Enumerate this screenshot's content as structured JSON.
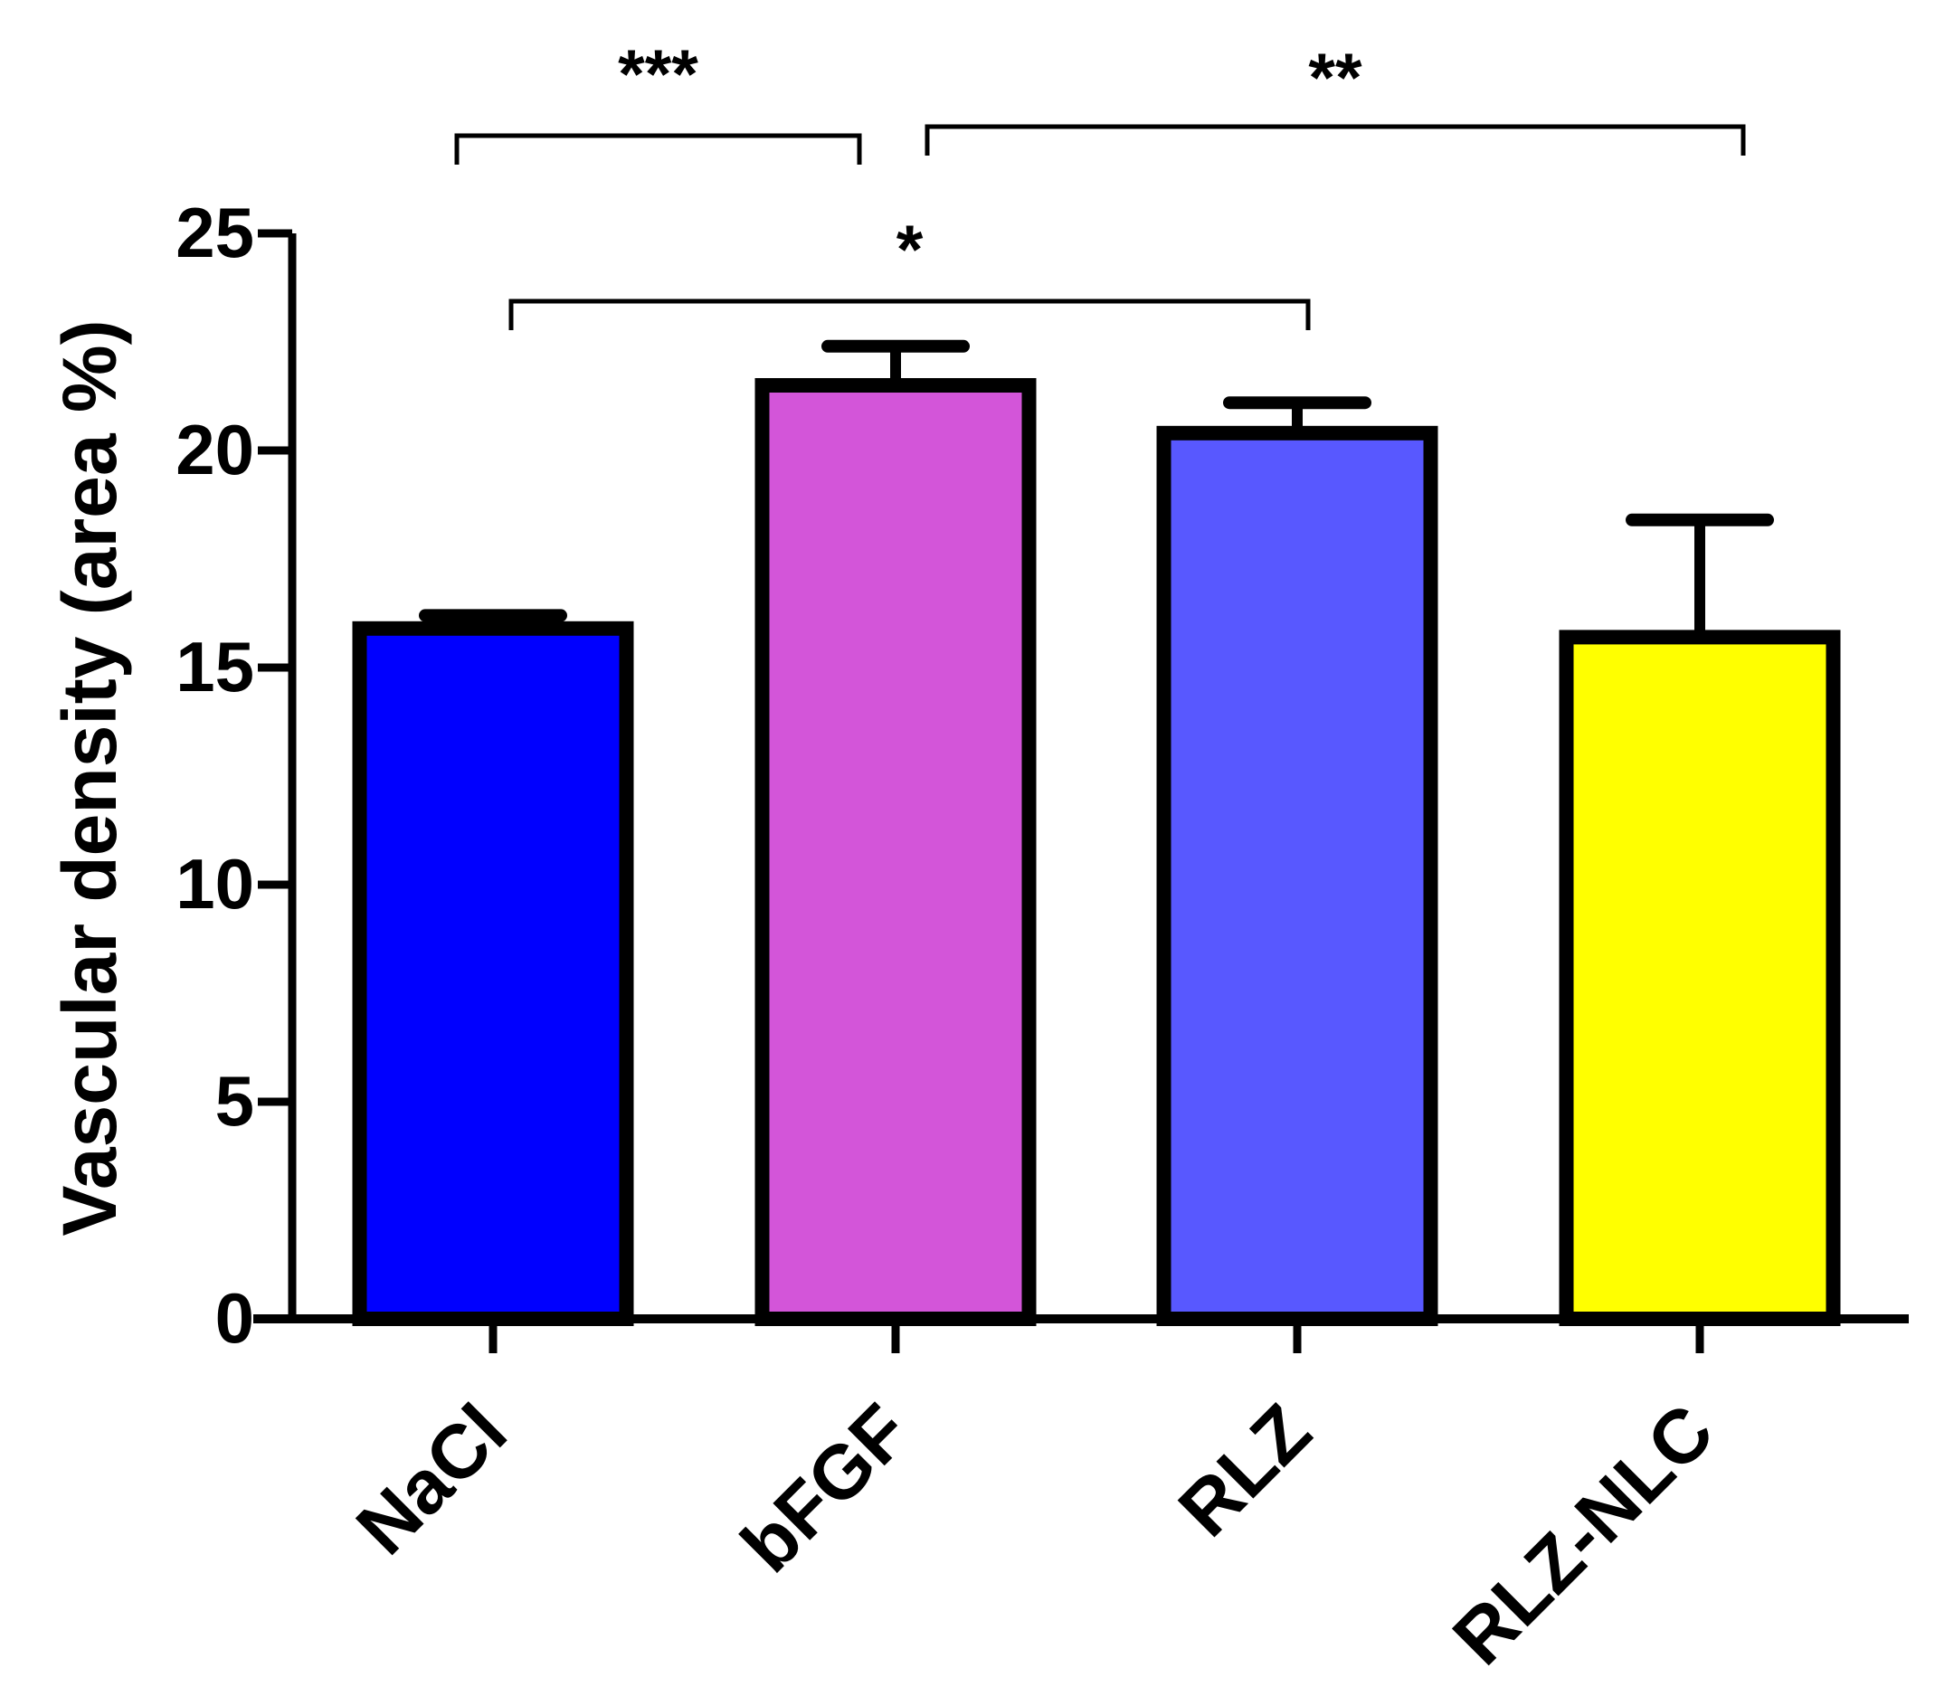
{
  "chart_data": {
    "type": "bar",
    "title": "",
    "xlabel": "",
    "ylabel": "Vascular density (area %)",
    "ylim": [
      0,
      25
    ],
    "yticks": [
      0,
      5,
      10,
      15,
      20,
      25
    ],
    "categories": [
      "NaCl",
      "bFGF",
      "RLZ",
      "RLZ-NLC"
    ],
    "values": [
      15.9,
      21.5,
      20.4,
      15.7
    ],
    "errors": [
      0.3,
      0.9,
      0.7,
      2.7
    ],
    "colors": [
      "#0000FF",
      "#D355D9",
      "#5858FF",
      "#FFFF00"
    ],
    "grid": false,
    "significance": [
      {
        "from": 0,
        "to": 1,
        "label": "***"
      },
      {
        "from": 1,
        "to": 3,
        "label": "**"
      },
      {
        "from": 0,
        "to": 2,
        "label": "*"
      }
    ]
  }
}
